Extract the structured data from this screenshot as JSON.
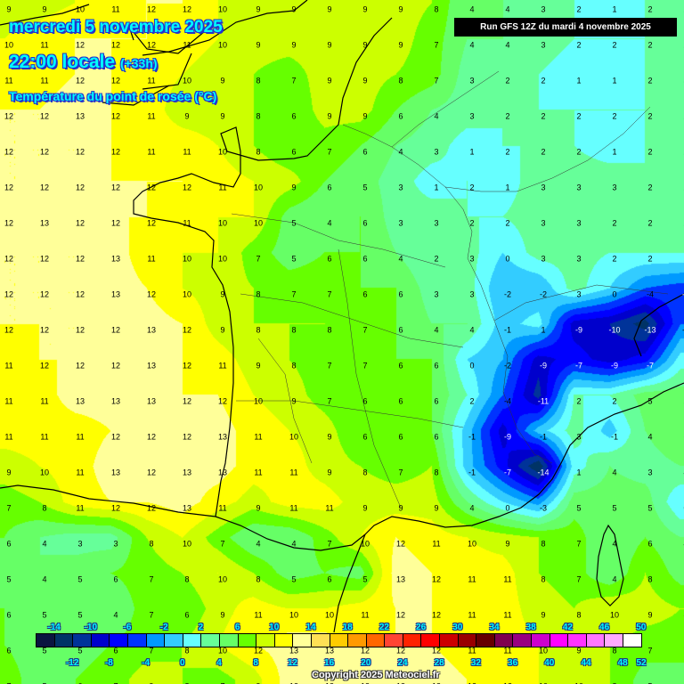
{
  "header": {
    "date_line": "mercredi 5 novembre 2025",
    "time_line": "22:00 locale",
    "offset": "(+33h)",
    "parameter": "Température du point de rosée (°C)",
    "run_info": "Run GFS 12Z du mardi 4 novembre 2025"
  },
  "footer": {
    "copyright": "Copyright 2025 Meteociel.fr"
  },
  "legend": {
    "unit": "°C",
    "colors": [
      "#0a1440",
      "#003366",
      "#003399",
      "#0000cc",
      "#0000ff",
      "#0033ff",
      "#0099ff",
      "#33ccff",
      "#66ffff",
      "#66ff99",
      "#66ff66",
      "#66ff00",
      "#ccff00",
      "#ffff00",
      "#ffff99",
      "#ffe055",
      "#ffcc00",
      "#ff9900",
      "#ff6600",
      "#ff4433",
      "#ff2200",
      "#ff0000",
      "#cc0000",
      "#990000",
      "#660000",
      "#7f004f",
      "#990080",
      "#cc00cc",
      "#ff00ff",
      "#ff33ff",
      "#ff77ff",
      "#ffaaff",
      "#ffffff"
    ],
    "labels_top": [
      "-14",
      "-10",
      "-6",
      "-2",
      "2",
      "6",
      "10",
      "14",
      "18",
      "22",
      "26",
      "30",
      "34",
      "38",
      "42",
      "46",
      "50"
    ],
    "labels_bottom": [
      "-12",
      "-8",
      "-4",
      "0",
      "4",
      "8",
      "12",
      "16",
      "20",
      "24",
      "28",
      "32",
      "36",
      "40",
      "44",
      "48",
      "52"
    ]
  },
  "map": {
    "values": [
      [
        9,
        9,
        10,
        11,
        12,
        12,
        10,
        9,
        9,
        9,
        9,
        9,
        8,
        4,
        4,
        3,
        2,
        1,
        2,
        2
      ],
      [
        10,
        11,
        12,
        12,
        12,
        11,
        10,
        9,
        9,
        9,
        9,
        9,
        7,
        4,
        4,
        3,
        2,
        2,
        2,
        2
      ],
      [
        11,
        11,
        12,
        12,
        11,
        10,
        9,
        8,
        7,
        9,
        9,
        8,
        7,
        3,
        2,
        2,
        1,
        1,
        2,
        3
      ],
      [
        12,
        12,
        13,
        12,
        11,
        9,
        9,
        8,
        6,
        9,
        9,
        6,
        4,
        3,
        2,
        2,
        2,
        2,
        2,
        2
      ],
      [
        12,
        12,
        12,
        12,
        11,
        11,
        10,
        8,
        6,
        7,
        6,
        4,
        3,
        1,
        2,
        2,
        2,
        1,
        2,
        2
      ],
      [
        12,
        12,
        12,
        12,
        12,
        12,
        11,
        10,
        9,
        6,
        5,
        3,
        1,
        2,
        1,
        3,
        3,
        3,
        2,
        2
      ],
      [
        12,
        13,
        12,
        12,
        12,
        11,
        10,
        10,
        5,
        4,
        6,
        3,
        3,
        2,
        2,
        3,
        3,
        2,
        2,
        2
      ],
      [
        12,
        12,
        12,
        13,
        11,
        10,
        10,
        7,
        5,
        6,
        6,
        4,
        2,
        3,
        0,
        3,
        3,
        2,
        2,
        2
      ],
      [
        12,
        12,
        12,
        13,
        12,
        10,
        9,
        8,
        7,
        7,
        6,
        6,
        3,
        3,
        -2,
        -2,
        3,
        0,
        -4,
        -5
      ],
      [
        12,
        12,
        12,
        12,
        13,
        12,
        9,
        8,
        8,
        8,
        7,
        6,
        4,
        4,
        -1,
        1,
        -9,
        -10,
        -13,
        -4
      ],
      [
        11,
        12,
        12,
        12,
        13,
        12,
        11,
        9,
        8,
        7,
        7,
        6,
        6,
        0,
        -2,
        -9,
        -7,
        -9,
        -7,
        1
      ],
      [
        11,
        11,
        13,
        13,
        13,
        12,
        12,
        10,
        9,
        7,
        6,
        6,
        6,
        2,
        -4,
        -11,
        2,
        2,
        5,
        5
      ],
      [
        11,
        11,
        11,
        12,
        12,
        12,
        13,
        11,
        10,
        9,
        6,
        6,
        6,
        -1,
        -9,
        -1,
        3,
        -1,
        4,
        6
      ],
      [
        9,
        10,
        11,
        13,
        12,
        13,
        13,
        11,
        11,
        9,
        8,
        7,
        8,
        -1,
        -7,
        -14,
        1,
        4,
        3,
        4
      ],
      [
        7,
        8,
        11,
        12,
        12,
        13,
        11,
        9,
        11,
        11,
        9,
        9,
        9,
        4,
        0,
        -3,
        5,
        5,
        5,
        0
      ],
      [
        6,
        4,
        3,
        3,
        8,
        10,
        7,
        4,
        4,
        7,
        10,
        12,
        11,
        10,
        9,
        8,
        7,
        4,
        6,
        4
      ],
      [
        5,
        4,
        5,
        6,
        7,
        8,
        10,
        8,
        5,
        6,
        5,
        13,
        12,
        11,
        11,
        8,
        7,
        4,
        8,
        5
      ],
      [
        6,
        5,
        5,
        4,
        7,
        6,
        9,
        11,
        10,
        10,
        11,
        12,
        12,
        11,
        11,
        9,
        8,
        10,
        9,
        8
      ],
      [
        6,
        5,
        5,
        6,
        7,
        8,
        10,
        12,
        13,
        13,
        12,
        12,
        12,
        11,
        11,
        10,
        9,
        8,
        7,
        7
      ],
      [
        7,
        5,
        6,
        7,
        9,
        8,
        7,
        9,
        13,
        13,
        13,
        13,
        13,
        12,
        12,
        10,
        10,
        8,
        5,
        5
      ]
    ]
  }
}
